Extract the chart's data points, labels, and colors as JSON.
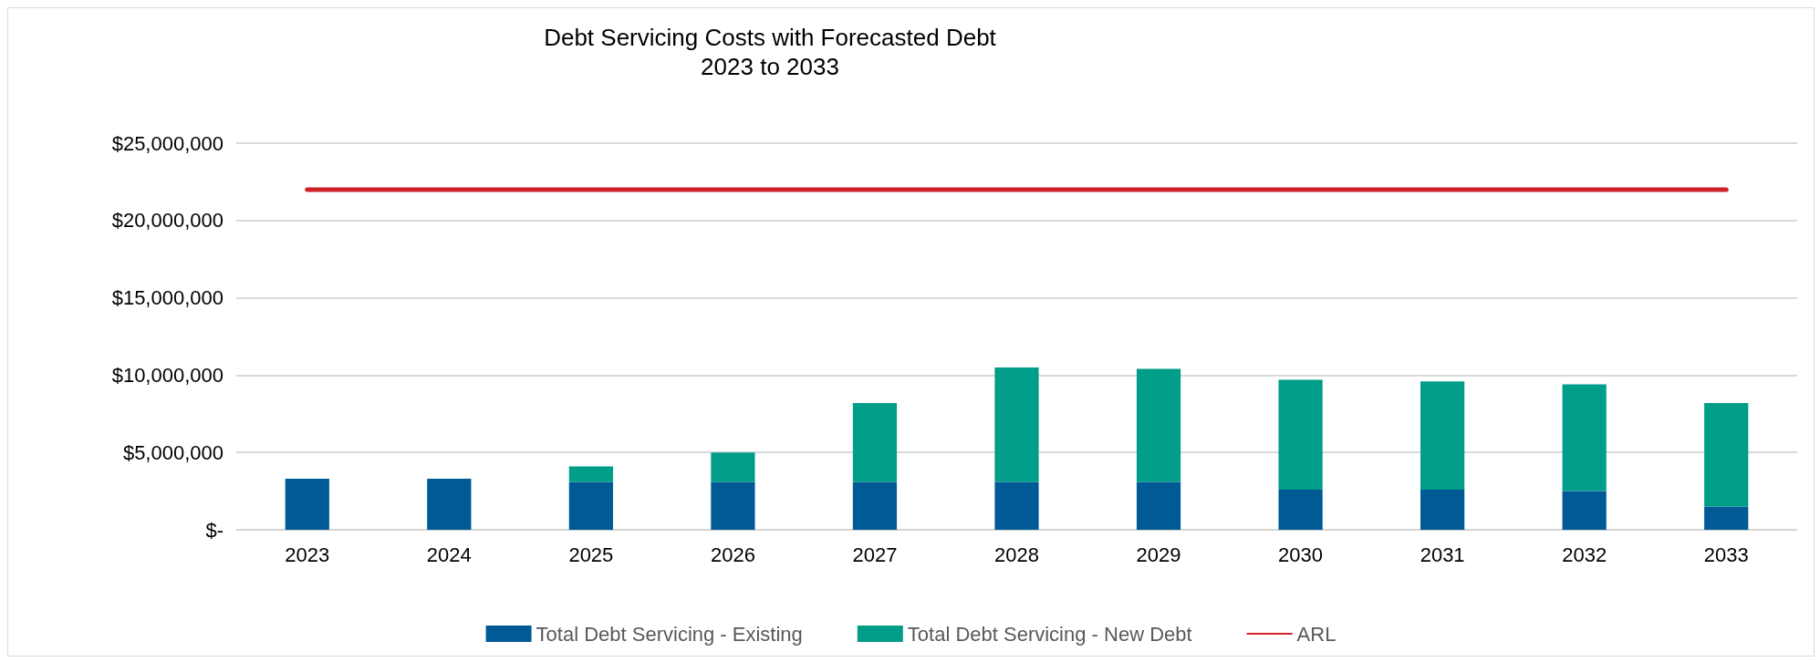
{
  "chart_data": {
    "type": "bar",
    "title": "Debt Servicing Costs with Forecasted Debt",
    "subtitle": "2023 to 2033",
    "categories": [
      "2023",
      "2024",
      "2025",
      "2026",
      "2027",
      "2028",
      "2029",
      "2030",
      "2031",
      "2032",
      "2033"
    ],
    "stacked": true,
    "series": [
      {
        "name": "Total Debt Servicing - Existing",
        "color": "#005a96",
        "values": [
          3300000,
          3300000,
          3100000,
          3100000,
          3100000,
          3100000,
          3100000,
          2600000,
          2600000,
          2500000,
          1500000
        ]
      },
      {
        "name": "Total Debt Servicing - New Debt",
        "color": "#009e89",
        "values": [
          0,
          0,
          1000000,
          1900000,
          5100000,
          7400000,
          7300000,
          7100000,
          7000000,
          6900000,
          6700000
        ]
      },
      {
        "name": "ARL",
        "type": "line",
        "color": "#cc2229",
        "values": [
          22000000,
          22000000,
          22000000,
          22000000,
          22000000,
          22000000,
          22000000,
          22000000,
          22000000,
          22000000,
          22000000
        ]
      }
    ],
    "ylim": [
      0,
      25000000
    ],
    "yticks": [
      {
        "value": 0,
        "label": "$-"
      },
      {
        "value": 5000000,
        "label": "$5,000,000"
      },
      {
        "value": 10000000,
        "label": "$10,000,000"
      },
      {
        "value": 15000000,
        "label": "$15,000,000"
      },
      {
        "value": 20000000,
        "label": "$20,000,000"
      },
      {
        "value": 25000000,
        "label": "$25,000,000"
      }
    ],
    "grid": "y",
    "legend": "bottom",
    "marker": "none"
  }
}
